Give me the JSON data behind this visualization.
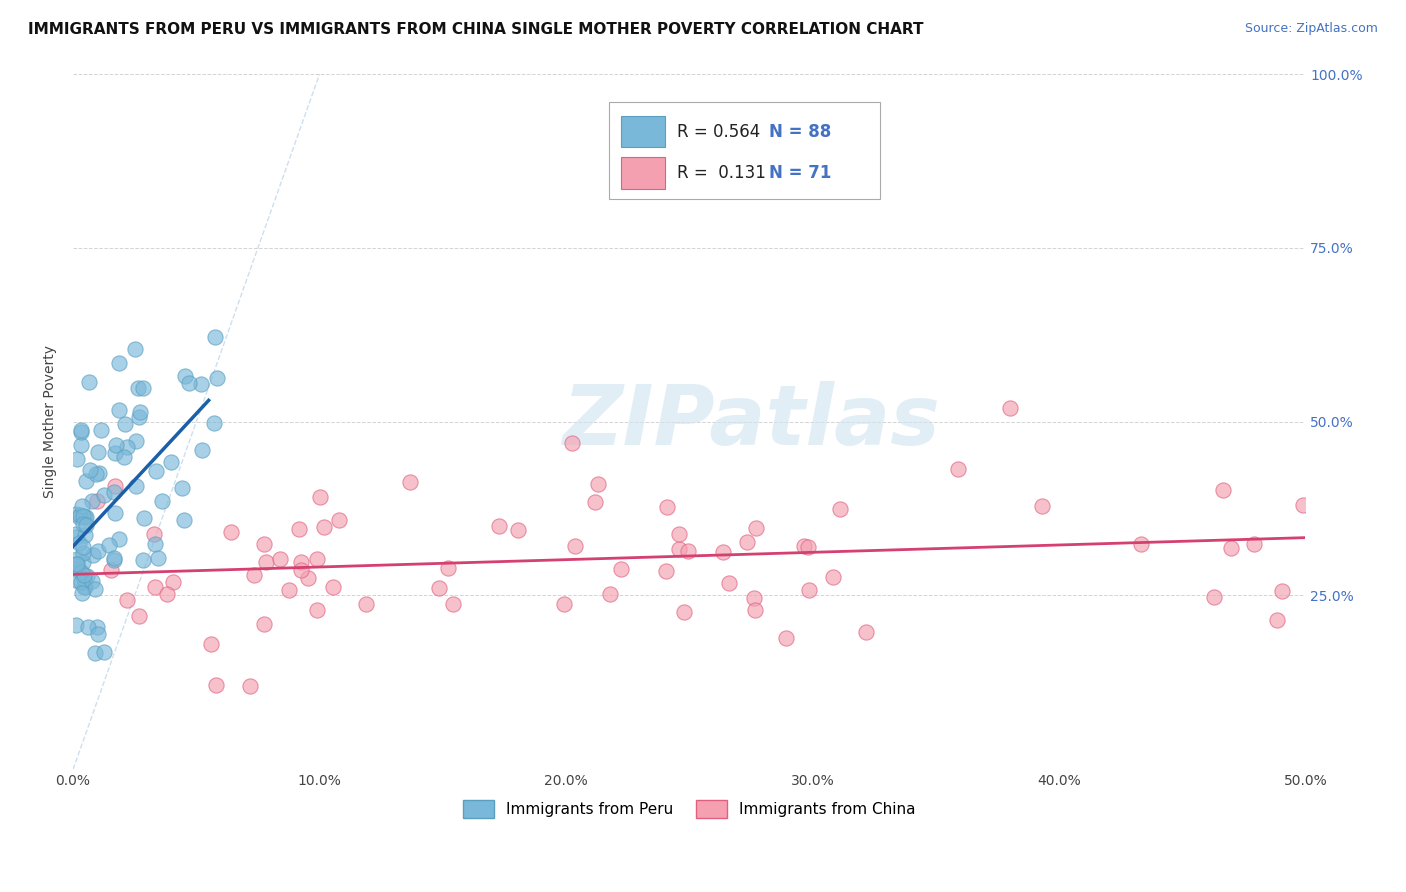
{
  "title": "IMMIGRANTS FROM PERU VS IMMIGRANTS FROM CHINA SINGLE MOTHER POVERTY CORRELATION CHART",
  "source_text": "Source: ZipAtlas.com",
  "ylabel": "Single Mother Poverty",
  "xlim": [
    0.0,
    0.5
  ],
  "ylim": [
    0.0,
    1.0
  ],
  "xticks": [
    0.0,
    0.1,
    0.2,
    0.3,
    0.4,
    0.5
  ],
  "yticks": [
    0.0,
    0.25,
    0.5,
    0.75,
    1.0
  ],
  "xticklabels": [
    "0.0%",
    "10.0%",
    "20.0%",
    "30.0%",
    "40.0%",
    "50.0%"
  ],
  "right_yticklabels": [
    "",
    "25.0%",
    "50.0%",
    "75.0%",
    "100.0%"
  ],
  "peru_color": "#7ab8d9",
  "peru_edge_color": "#5a9fc0",
  "china_color": "#f4a0b0",
  "china_edge_color": "#e06080",
  "trend_peru_color": "#1a5fa8",
  "trend_china_color": "#d44070",
  "diag_color": "#c0d8ec",
  "background_color": "#ffffff",
  "grid_color": "#d0d0d0",
  "title_fontsize": 11,
  "axis_label_fontsize": 10,
  "tick_fontsize": 10,
  "legend_r1_text": "R = 0.564",
  "legend_n1_text": "N = 88",
  "legend_r2_text": "R =  0.131",
  "legend_n2_text": "N = 71",
  "legend_color_blue": "#4472c4",
  "watermark_text": "ZIPatlas",
  "watermark_color": "#d0e4f0",
  "bottom_legend1": "Immigrants from Peru",
  "bottom_legend2": "Immigrants from China"
}
